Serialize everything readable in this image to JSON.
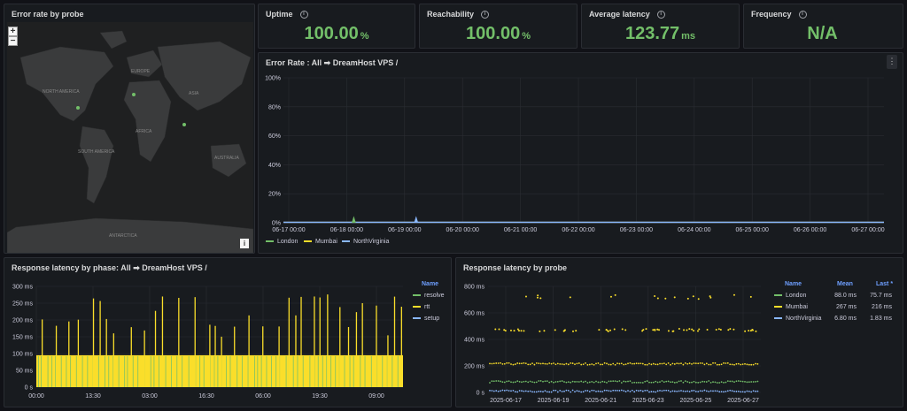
{
  "map_panel": {
    "title": "Error rate by probe",
    "zoom_in": "+",
    "zoom_out": "−",
    "labels": [
      "NORTH AMERICA",
      "EUROPE",
      "ASIA",
      "AFRICA",
      "SOUTH AMERICA",
      "AUSTRALIA",
      "ANTARCTICA"
    ],
    "info_button": "i"
  },
  "stats": [
    {
      "title": "Uptime",
      "value": "100.00",
      "unit": "%"
    },
    {
      "title": "Reachability",
      "value": "100.00",
      "unit": "%"
    },
    {
      "title": "Average latency",
      "value": "123.77",
      "unit": "ms"
    },
    {
      "title": "Frequency",
      "value": "N/A",
      "unit": ""
    }
  ],
  "colors": {
    "london": "#73bf69",
    "mumbai": "#fade2a",
    "northvirginia": "#8ab8ff",
    "stat_green": "#73bf69"
  },
  "error_rate": {
    "title": "Error Rate : All ➡ DreamHost VPS /",
    "menu": "⋮",
    "legend": [
      {
        "name": "London"
      },
      {
        "name": "Mumbai"
      },
      {
        "name": "NorthVirginia"
      }
    ]
  },
  "phase_panel": {
    "title": "Response latency by phase: All ➡ DreamHost VPS /",
    "legend_header": "Name",
    "legend": [
      {
        "name": "resolve"
      },
      {
        "name": "rtt"
      },
      {
        "name": "setup"
      }
    ]
  },
  "probe_panel": {
    "title": "Response latency by probe",
    "headers": {
      "name": "Name",
      "mean": "Mean",
      "last": "Last *"
    },
    "rows": [
      {
        "name": "London",
        "mean": "88.0 ms",
        "last": "75.7 ms"
      },
      {
        "name": "Mumbai",
        "mean": "267 ms",
        "last": "216 ms"
      },
      {
        "name": "NorthVirginia",
        "mean": "6.80 ms",
        "last": "1.83 ms"
      }
    ]
  },
  "chart_data": [
    {
      "type": "line",
      "ylim": [
        0,
        100
      ],
      "yticks": [
        "0%",
        "20%",
        "40%",
        "60%",
        "80%",
        "100%"
      ],
      "x": [
        "06-17 00:00",
        "06-18 00:00",
        "06-19 00:00",
        "06-20 00:00",
        "06-21 00:00",
        "06-22 00:00",
        "06-23 00:00",
        "06-24 00:00",
        "06-25 00:00",
        "06-26 00:00",
        "06-27 00:00"
      ],
      "series": [
        {
          "name": "London",
          "spikes": [
            {
              "at": "06-18 01:00",
              "value": 4
            }
          ]
        },
        {
          "name": "Mumbai",
          "values": [
            0,
            0,
            0,
            0,
            0,
            0,
            0,
            0,
            0,
            0,
            0
          ]
        },
        {
          "name": "NorthVirginia",
          "spikes": [
            {
              "at": "06-19 03:00",
              "value": 4
            }
          ]
        }
      ]
    },
    {
      "type": "bar",
      "ylim": [
        0,
        300
      ],
      "yticks": [
        "0 s",
        "50 ms",
        "100 ms",
        "150 ms",
        "200 ms",
        "250 ms",
        "300 ms"
      ],
      "xticks": [
        "00:00",
        "13:30",
        "03:00",
        "16:30",
        "06:00",
        "19:30",
        "09:00"
      ],
      "series": [
        {
          "name": "resolve",
          "typical": 0
        },
        {
          "name": "rtt",
          "typical": 95,
          "spike_range": [
            150,
            280
          ]
        },
        {
          "name": "setup",
          "typical": 0
        }
      ]
    },
    {
      "type": "scatter",
      "ylim": [
        0,
        800
      ],
      "yticks": [
        "0 s",
        "200 ms",
        "400 ms",
        "600 ms",
        "800 ms"
      ],
      "xticks": [
        "2025-06-17",
        "2025-06-19",
        "2025-06-21",
        "2025-06-23",
        "2025-06-25",
        "2025-06-27"
      ],
      "series": [
        {
          "name": "London",
          "typical": 80
        },
        {
          "name": "Mumbai",
          "typical": 215,
          "outliers": [
            470,
            720
          ]
        },
        {
          "name": "NorthVirginia",
          "typical": 10
        }
      ]
    }
  ]
}
